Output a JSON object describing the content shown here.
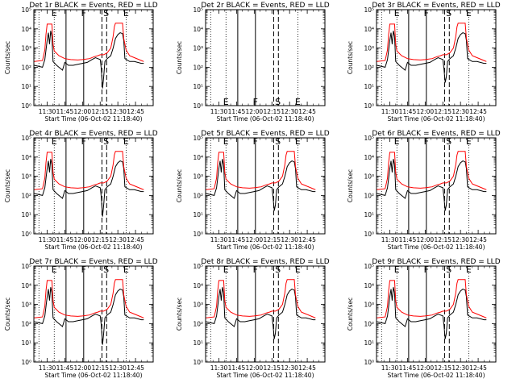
{
  "chart_data": [
    {
      "id": "1r",
      "title": "Det 1r BLACK = Events, RED = LLD",
      "has_data": true,
      "dip_deep": true
    },
    {
      "id": "2r",
      "title": "Det 2r BLACK = Events, RED = LLD",
      "has_data": false,
      "dip_deep": false
    },
    {
      "id": "3r",
      "title": "Det 3r BLACK = Events, RED = LLD",
      "has_data": true,
      "dip_deep": false
    },
    {
      "id": "4r",
      "title": "Det 4r BLACK = Events, RED = LLD",
      "has_data": true,
      "dip_deep": true
    },
    {
      "id": "5r",
      "title": "Det 5r BLACK = Events, RED = LLD",
      "has_data": true,
      "dip_deep": false
    },
    {
      "id": "6r",
      "title": "Det 6r BLACK = Events, RED = LLD",
      "has_data": true,
      "dip_deep": false
    },
    {
      "id": "7r",
      "title": "Det 7r BLACK = Events, RED = LLD",
      "has_data": true,
      "dip_deep": true
    },
    {
      "id": "8r",
      "title": "Det 8r BLACK = Events, RED = LLD",
      "has_data": true,
      "dip_deep": false
    },
    {
      "id": "9r",
      "title": "Det 9r BLACK = Events, RED = LLD",
      "has_data": true,
      "dip_deep": false
    }
  ],
  "chart_common": {
    "type": "line",
    "xlabel": "Start Time (06-Oct-02 11:18:40)",
    "ylabel": "Counts/sec",
    "xticks": [
      "11:30",
      "11:45",
      "12:00",
      "12:15",
      "12:30",
      "12:45"
    ],
    "xtick_minutes": [
      690,
      705,
      720,
      735,
      750,
      765
    ],
    "xlim_minutes": [
      678.7,
      780
    ],
    "yticks": [
      "10⁰",
      "10¹",
      "10²",
      "10³",
      "10⁴",
      "10⁵"
    ],
    "ylim_log10": [
      0,
      5
    ],
    "markers": [
      {
        "label": "E",
        "minute": 696
      },
      {
        "label": "F",
        "minute": 721
      },
      {
        "label": "S",
        "minute": 740
      },
      {
        "label": "E",
        "minute": 757
      }
    ],
    "dotted_lines_minutes": [
      683,
      696,
      757
    ],
    "solid_lines_minutes": [
      706,
      721
    ],
    "dashed_lines_minutes": [
      736.5,
      740.5
    ],
    "series": [
      {
        "name": "Events",
        "color": "#000000",
        "points": [
          [
            679,
            2.1
          ],
          [
            686,
            2.0
          ],
          [
            688,
            2.4
          ],
          [
            690,
            3.4
          ],
          [
            691,
            3.8
          ],
          [
            692,
            3.2
          ],
          [
            693,
            3.9
          ],
          [
            694,
            3.6
          ],
          [
            695,
            2.3
          ],
          [
            698,
            2.1
          ],
          [
            703,
            1.85
          ],
          [
            705,
            2.25
          ],
          [
            708,
            2.1
          ],
          [
            712,
            2.1
          ],
          [
            716,
            2.15
          ],
          [
            720,
            2.2
          ],
          [
            724,
            2.25
          ],
          [
            728,
            2.4
          ],
          [
            731,
            2.5
          ],
          [
            733,
            2.45
          ],
          [
            735,
            2.4
          ],
          [
            736,
            1.9
          ],
          [
            737,
            1.2
          ],
          [
            738,
            1.5
          ],
          [
            739,
            2.3
          ],
          [
            741,
            2.45
          ],
          [
            744,
            2.6
          ],
          [
            746,
            3.0
          ],
          [
            748,
            3.5
          ],
          [
            750,
            3.7
          ],
          [
            752,
            3.8
          ],
          [
            754,
            3.75
          ],
          [
            755,
            3.4
          ],
          [
            756,
            2.45
          ],
          [
            760,
            2.3
          ],
          [
            764,
            2.3
          ],
          [
            770,
            2.2
          ],
          [
            772,
            2.2
          ]
        ]
      },
      {
        "name": "LLD",
        "color": "#ff0000",
        "points": [
          [
            679,
            2.3
          ],
          [
            686,
            2.35
          ],
          [
            688,
            2.9
          ],
          [
            689,
            3.7
          ],
          [
            690,
            4.25
          ],
          [
            694,
            4.25
          ],
          [
            695,
            3.2
          ],
          [
            696,
            2.85
          ],
          [
            700,
            2.6
          ],
          [
            705,
            2.45
          ],
          [
            710,
            2.4
          ],
          [
            716,
            2.38
          ],
          [
            720,
            2.4
          ],
          [
            726,
            2.45
          ],
          [
            730,
            2.55
          ],
          [
            733,
            2.6
          ],
          [
            735,
            2.65
          ],
          [
            738,
            2.65
          ],
          [
            741,
            2.75
          ],
          [
            744,
            3.0
          ],
          [
            746,
            3.6
          ],
          [
            747,
            4.1
          ],
          [
            748,
            4.3
          ],
          [
            754,
            4.3
          ],
          [
            755,
            3.5
          ],
          [
            757,
            2.9
          ],
          [
            760,
            2.6
          ],
          [
            764,
            2.5
          ],
          [
            770,
            2.35
          ],
          [
            772,
            2.3
          ]
        ]
      }
    ]
  }
}
